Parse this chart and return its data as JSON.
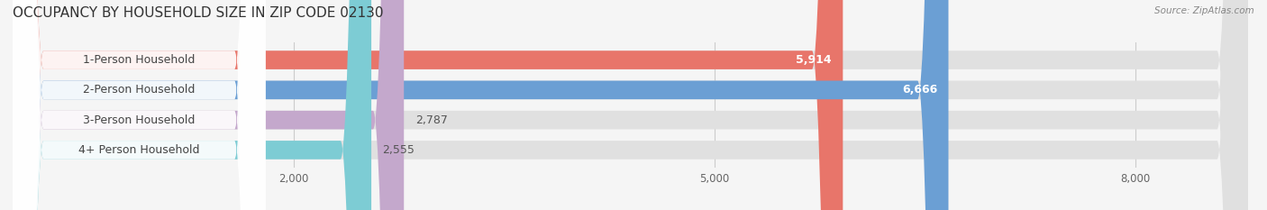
{
  "title": "OCCUPANCY BY HOUSEHOLD SIZE IN ZIP CODE 02130",
  "source": "Source: ZipAtlas.com",
  "categories": [
    "1-Person Household",
    "2-Person Household",
    "3-Person Household",
    "4+ Person Household"
  ],
  "values": [
    5914,
    6666,
    2787,
    2555
  ],
  "bar_colors": [
    "#E8756A",
    "#6B9FD4",
    "#C4A8CC",
    "#7DCCD4"
  ],
  "xlim": [
    0,
    8800
  ],
  "xticks": [
    2000,
    5000,
    8000
  ],
  "xtick_labels": [
    "2,000",
    "5,000",
    "8,000"
  ],
  "bar_height": 0.62,
  "background_color": "#f5f5f5",
  "bar_bg_color": "#e0e0e0",
  "label_fontsize": 9,
  "title_fontsize": 11,
  "value_color_inside": "#ffffff",
  "value_color_outside": "#555555",
  "label_bg_color": "#ffffff",
  "label_text_color": "#444444"
}
